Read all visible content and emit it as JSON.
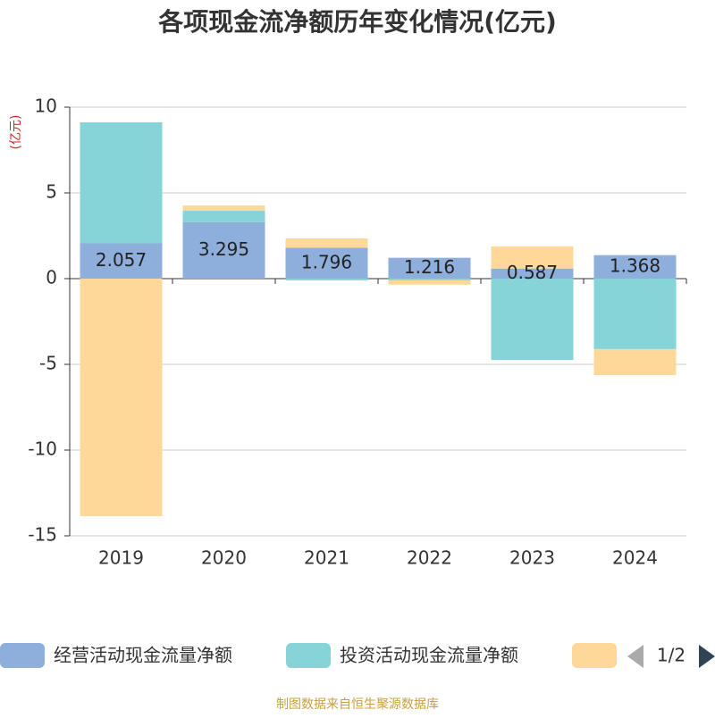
{
  "chart_data": {
    "type": "bar",
    "stacked": true,
    "title": "各项现金流净额历年变化情况(亿元)",
    "y_unit": "(亿元)",
    "categories": [
      "2019",
      "2020",
      "2021",
      "2022",
      "2023",
      "2024"
    ],
    "series": [
      {
        "name": "经营活动现金流量净额",
        "color": "#8eaedc",
        "values": [
          2.057,
          3.295,
          1.796,
          1.216,
          0.587,
          1.368
        ],
        "data_labels": true
      },
      {
        "name": "投资活动现金流量净额",
        "color": "#86d4d8",
        "values": [
          7.06,
          0.66,
          -0.1,
          -0.1,
          -4.74,
          -4.11
        ]
      },
      {
        "color": "#fdd898",
        "values": [
          -13.85,
          0.31,
          0.55,
          -0.25,
          1.29,
          -1.52
        ]
      }
    ],
    "ylim": [
      -15,
      10
    ],
    "yticks": [
      -15,
      -10,
      -5,
      0,
      5,
      10
    ],
    "grid": true,
    "legend_page": "1/2",
    "source": "制图数据来自恒生聚源数据库"
  }
}
